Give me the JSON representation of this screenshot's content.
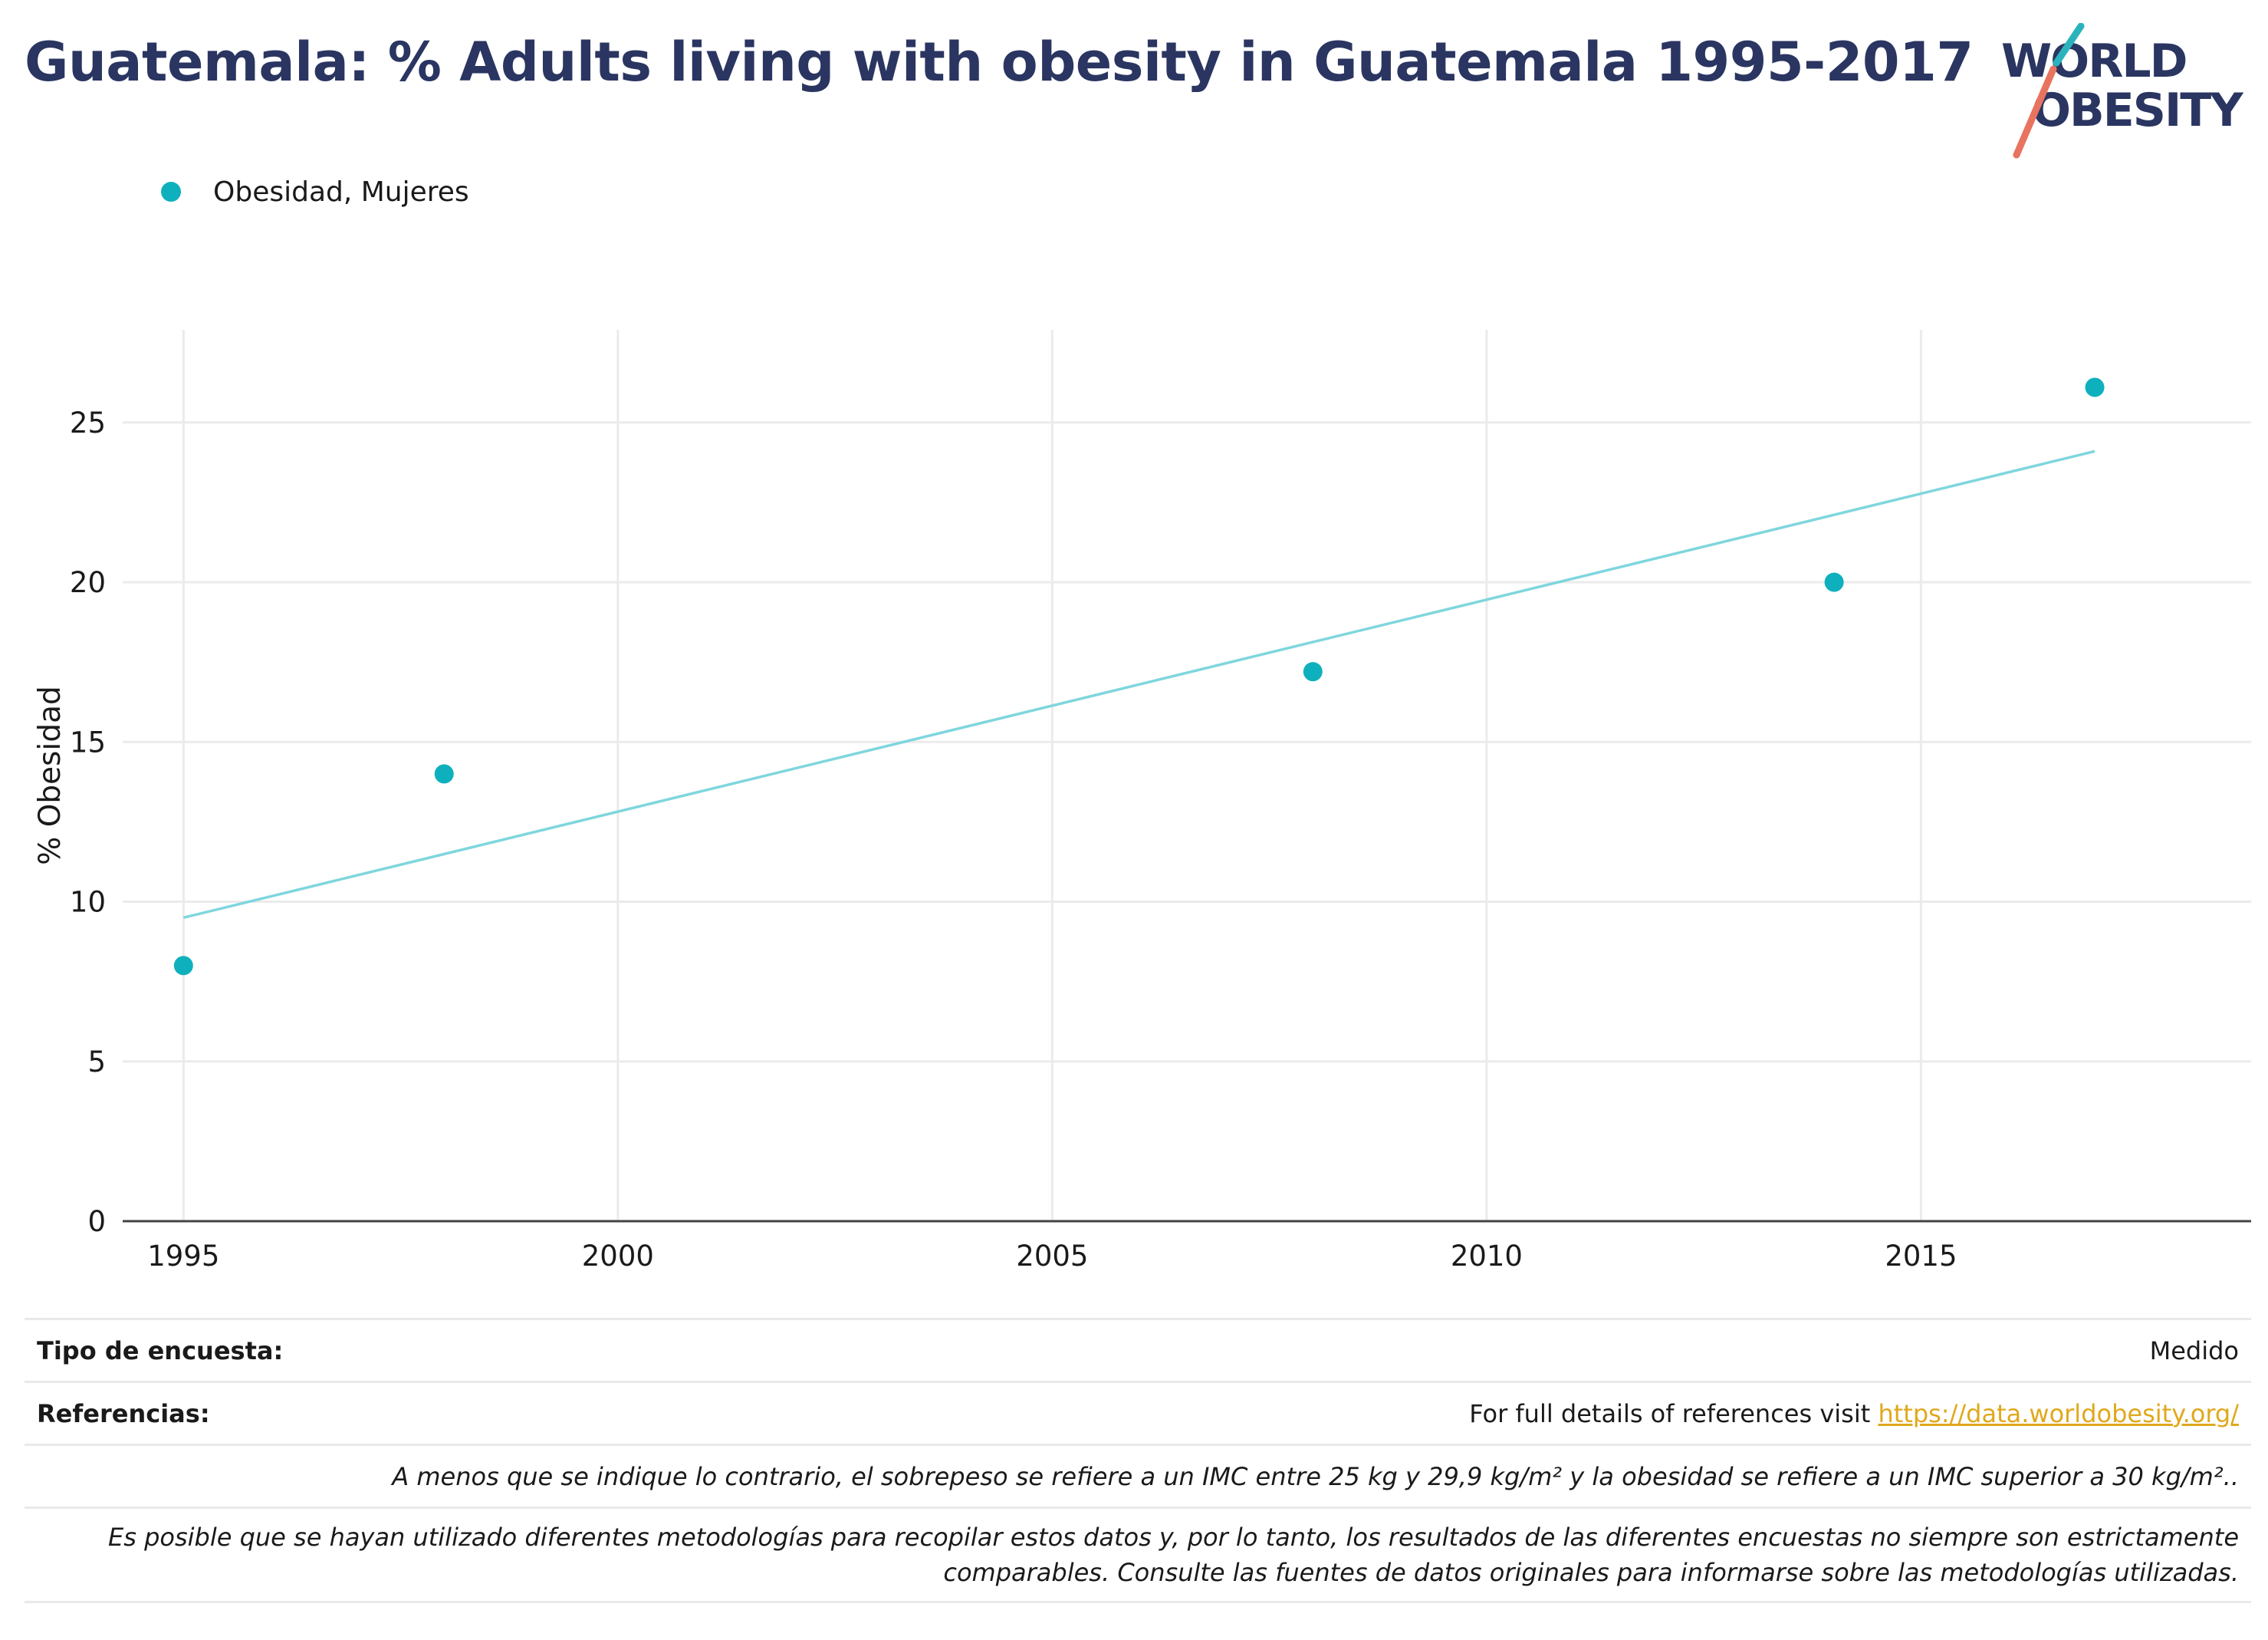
{
  "title": "Guatemala: % Adults living with obesity in Guatemala 1995-2017",
  "logo": {
    "line1": "WORLD",
    "line2": "OBESITY",
    "accent_teal": "#2bb3bd",
    "accent_coral": "#e8735f",
    "text_color": "#2a3561"
  },
  "legend": {
    "label": "Obesidad, Mujeres",
    "color": "#0fb0bd"
  },
  "chart_data": {
    "type": "scatter",
    "title": "Guatemala: % Adults living with obesity in Guatemala 1995-2017",
    "ylabel": "% Obesidad",
    "xlabel": "",
    "xlim": [
      1994.3,
      2018.8
    ],
    "ylim": [
      0,
      27.9
    ],
    "xticks": [
      1995,
      2000,
      2005,
      2010,
      2015
    ],
    "yticks": [
      0,
      5,
      10,
      15,
      20,
      25
    ],
    "grid": true,
    "legend_position": "top-left",
    "series": [
      {
        "name": "Obesidad, Mujeres",
        "color": "#0fb0bd",
        "x": [
          1995,
          1998,
          2008,
          2014,
          2017
        ],
        "y": [
          8.0,
          14.0,
          17.2,
          20.0,
          26.1
        ]
      }
    ],
    "trendline": {
      "color": "#7fd6dd",
      "x": [
        1995,
        2017
      ],
      "y": [
        9.5,
        24.1
      ]
    }
  },
  "table": {
    "survey_type_label": "Tipo de encuesta:",
    "survey_type_value": "Medido",
    "references_label": "Referencias:",
    "references_text": "For full details of references visit ",
    "references_link": "https://data.worldobesity.org/",
    "note1": "A menos que se indique lo contrario, el sobrepeso se refiere a un IMC entre 25 kg y 29,9 kg/m² y la obesidad se refiere a un IMC superior a 30 kg/m²..",
    "note2_line1": "Es posible que se hayan utilizado diferentes metodologías para recopilar estos datos y, por lo tanto, los resultados de las diferentes encuestas no siempre son estrictamente",
    "note2_line2": "comparables. Consulte las fuentes de datos originales para informarse sobre las metodologías utilizadas."
  }
}
